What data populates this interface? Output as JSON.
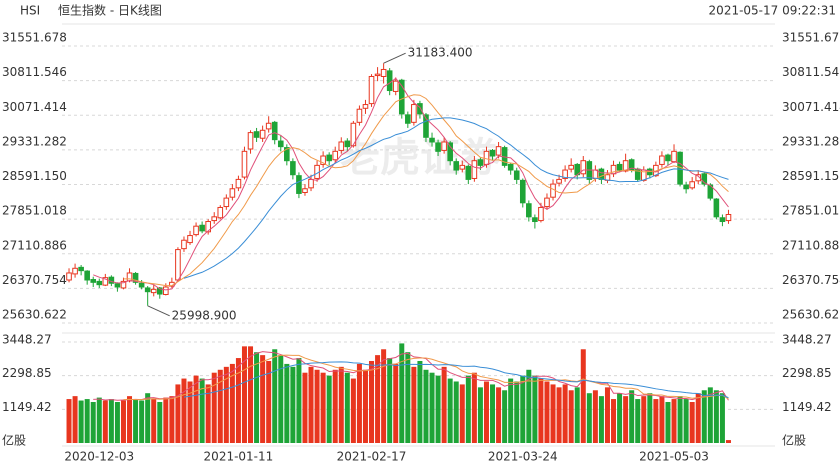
{
  "header": {
    "symbol": "HSI",
    "title": "恒生指数 - 日K线图",
    "timestamp": "2021-05-17 09:22:31",
    "watermark": "老虎证券"
  },
  "chart_data": {
    "type": "candlestick",
    "up_color": "#e8361f",
    "down_color": "#1ea437",
    "categories": [
      null,
      null,
      null,
      null,
      null,
      "2020-12-03",
      null,
      null,
      null,
      null,
      null,
      null,
      null,
      null,
      null,
      null,
      null,
      null,
      null,
      null,
      null,
      null,
      null,
      null,
      null,
      null,
      null,
      null,
      "2021-01-11",
      null,
      null,
      null,
      null,
      null,
      null,
      null,
      null,
      null,
      null,
      null,
      null,
      null,
      null,
      null,
      null,
      null,
      null,
      null,
      null,
      null,
      "2021-02-17",
      null,
      null,
      null,
      null,
      null,
      null,
      null,
      null,
      null,
      null,
      null,
      null,
      null,
      null,
      null,
      null,
      null,
      null,
      null,
      null,
      null,
      null,
      null,
      null,
      "2021-03-24",
      null,
      null,
      null,
      null,
      null,
      null,
      null,
      null,
      null,
      null,
      null,
      null,
      null,
      null,
      null,
      null,
      null,
      null,
      null,
      null,
      null,
      null,
      null,
      null,
      "2021-05-03",
      null,
      null,
      null,
      null,
      null,
      null,
      null,
      null,
      null
    ],
    "ohlc": [
      [
        26550,
        26800,
        26500,
        26700
      ],
      [
        26680,
        26900,
        26600,
        26800
      ],
      [
        26820,
        26870,
        26650,
        26750
      ],
      [
        26740,
        26760,
        26450,
        26550
      ],
      [
        26560,
        26620,
        26400,
        26500
      ],
      [
        26520,
        26580,
        26380,
        26450
      ],
      [
        26440,
        26680,
        26420,
        26600
      ],
      [
        26610,
        26650,
        26420,
        26480
      ],
      [
        26470,
        26500,
        26300,
        26400
      ],
      [
        26380,
        26600,
        26350,
        26520
      ],
      [
        26530,
        26800,
        26500,
        26700
      ],
      [
        26690,
        26720,
        26450,
        26500
      ],
      [
        26480,
        26550,
        26350,
        26400
      ],
      [
        26380,
        26420,
        25998.9,
        26300
      ],
      [
        26280,
        26450,
        26200,
        26350
      ],
      [
        26380,
        26400,
        26150,
        26250
      ],
      [
        26240,
        26480,
        26220,
        26400
      ],
      [
        26420,
        26600,
        26380,
        26500
      ],
      [
        26550,
        27250,
        26520,
        27200
      ],
      [
        27220,
        27480,
        27150,
        27400
      ],
      [
        27350,
        27600,
        27300,
        27500
      ],
      [
        27520,
        27780,
        27480,
        27700
      ],
      [
        27720,
        27800,
        27550,
        27600
      ],
      [
        27580,
        27850,
        27520,
        27800
      ],
      [
        27820,
        28000,
        27750,
        27900
      ],
      [
        27880,
        28150,
        27850,
        28100
      ],
      [
        28120,
        28380,
        28050,
        28300
      ],
      [
        28320,
        28600,
        28250,
        28500
      ],
      [
        28520,
        28780,
        28450,
        28700
      ],
      [
        28750,
        29400,
        28700,
        29300
      ],
      [
        29350,
        29750,
        29250,
        29700
      ],
      [
        29720,
        29800,
        29500,
        29600
      ],
      [
        29580,
        29850,
        29500,
        29750
      ],
      [
        29780,
        30050,
        29700,
        29900
      ],
      [
        29920,
        29950,
        29450,
        29550
      ],
      [
        29520,
        29650,
        29300,
        29400
      ],
      [
        29380,
        29450,
        29000,
        29100
      ],
      [
        29080,
        29150,
        28700,
        28800
      ],
      [
        28780,
        28850,
        28300,
        28400
      ],
      [
        28420,
        28600,
        28350,
        28500
      ],
      [
        28520,
        28800,
        28450,
        28700
      ],
      [
        28720,
        29100,
        28650,
        29000
      ],
      [
        29020,
        29300,
        28950,
        29200
      ],
      [
        29220,
        29280,
        29000,
        29100
      ],
      [
        29120,
        29400,
        29050,
        29300
      ],
      [
        29320,
        29600,
        29250,
        29500
      ],
      [
        29520,
        29580,
        29300,
        29400
      ],
      [
        29420,
        29950,
        29380,
        29900
      ],
      [
        29920,
        30280,
        29850,
        30200
      ],
      [
        30220,
        30400,
        30100,
        30300
      ],
      [
        30320,
        30950,
        30250,
        30900
      ],
      [
        30920,
        31100,
        30800,
        30950
      ],
      [
        30900,
        31183.4,
        30750,
        31050
      ],
      [
        31020,
        31080,
        30500,
        30600
      ],
      [
        30580,
        30880,
        30500,
        30800
      ],
      [
        30820,
        30850,
        30000,
        30100
      ],
      [
        30080,
        30150,
        29800,
        29900
      ],
      [
        29920,
        30400,
        29850,
        30300
      ],
      [
        30320,
        30380,
        30000,
        30100
      ],
      [
        30080,
        30120,
        29500,
        29600
      ],
      [
        29580,
        29700,
        29400,
        29500
      ],
      [
        29480,
        29550,
        29200,
        29300
      ],
      [
        29320,
        29600,
        29250,
        29500
      ],
      [
        29480,
        29520,
        29000,
        29100
      ],
      [
        29080,
        29150,
        28800,
        28900
      ],
      [
        28920,
        29100,
        28850,
        29000
      ],
      [
        28980,
        29020,
        28600,
        28700
      ],
      [
        28720,
        29200,
        28650,
        29100
      ],
      [
        29120,
        29180,
        28900,
        29000
      ],
      [
        29020,
        29400,
        28950,
        29300
      ],
      [
        29320,
        29350,
        29100,
        29200
      ],
      [
        29220,
        29500,
        29150,
        29400
      ],
      [
        29380,
        29420,
        28950,
        29000
      ],
      [
        29020,
        29050,
        28800,
        28900
      ],
      [
        28880,
        28950,
        28600,
        28700
      ],
      [
        28680,
        28720,
        28100,
        28200
      ],
      [
        28180,
        28250,
        27800,
        27900
      ],
      [
        27880,
        27950,
        27650,
        27800
      ],
      [
        27820,
        28200,
        27780,
        28100
      ],
      [
        28120,
        28400,
        28050,
        28300
      ],
      [
        28320,
        28700,
        28250,
        28600
      ],
      [
        28620,
        28800,
        28550,
        28700
      ],
      [
        28720,
        29000,
        28650,
        28900
      ],
      [
        28920,
        29150,
        28850,
        29000
      ],
      [
        29020,
        29050,
        28700,
        28800
      ],
      [
        28820,
        29200,
        28750,
        29100
      ],
      [
        29080,
        29120,
        28600,
        28700
      ],
      [
        28720,
        29000,
        28650,
        28900
      ],
      [
        28920,
        28950,
        28600,
        28700
      ],
      [
        28680,
        28900,
        28620,
        28800
      ],
      [
        28820,
        29100,
        28750,
        29000
      ],
      [
        29020,
        29080,
        28850,
        28900
      ],
      [
        28880,
        29250,
        28850,
        29100
      ],
      [
        29120,
        29150,
        28850,
        28900
      ],
      [
        28920,
        28950,
        28650,
        28700
      ],
      [
        28680,
        28980,
        28650,
        28900
      ],
      [
        28920,
        28950,
        28720,
        28800
      ],
      [
        28780,
        29080,
        28750,
        29000
      ],
      [
        29020,
        29300,
        28950,
        29200
      ],
      [
        29220,
        29250,
        29000,
        29100
      ],
      [
        29080,
        29450,
        29050,
        29300
      ],
      [
        29280,
        29300,
        28550,
        28600
      ],
      [
        28580,
        28650,
        28400,
        28500
      ],
      [
        28520,
        28750,
        28480,
        28650
      ],
      [
        28670,
        28900,
        28600,
        28800
      ],
      [
        28820,
        28850,
        28550,
        28600
      ],
      [
        28580,
        28620,
        28250,
        28300
      ],
      [
        28280,
        28300,
        27850,
        27900
      ],
      [
        27880,
        27950,
        27700,
        27800
      ],
      [
        27820,
        28050,
        27750,
        27950
      ]
    ],
    "volume": [
      1500,
      1600,
      1450,
      1500,
      1400,
      1550,
      1450,
      1500,
      1400,
      1450,
      1600,
      1500,
      1450,
      1700,
      1500,
      1400,
      1550,
      1600,
      2000,
      2200,
      2100,
      2300,
      2200,
      2000,
      2400,
      2500,
      2600,
      2700,
      2900,
      3300,
      3300,
      3100,
      3000,
      2800,
      3200,
      3000,
      2700,
      2600,
      2900,
      2400,
      2600,
      2500,
      2400,
      2300,
      2500,
      2600,
      2400,
      2200,
      2700,
      2500,
      2800,
      3000,
      3200,
      2900,
      2700,
      3400,
      3100,
      2600,
      2800,
      2500,
      2400,
      2300,
      2600,
      2200,
      2100,
      2000,
      2300,
      2400,
      1900,
      2100,
      2000,
      1900,
      1800,
      2200,
      2100,
      2300,
      2500,
      2300,
      2200,
      2100,
      2000,
      1900,
      2000,
      1800,
      1900,
      3200,
      1700,
      1800,
      1600,
      1900,
      1500,
      1700,
      1600,
      1800,
      1500,
      1600,
      1700,
      1500,
      1600,
      1400,
      1500,
      1600,
      1500,
      1400,
      1700,
      1800,
      1900,
      1800,
      1700,
      100
    ],
    "ylim": [
      25630.622,
      31551.678
    ],
    "yticks": [
      25630.622,
      26370.754,
      27110.886,
      27851.018,
      {
        "value": 28591.15,
        "label": "28591.150"
      },
      29331.282,
      30071.414,
      30811.546,
      31551.678
    ],
    "y2lim": [
      0,
      3448.27
    ],
    "y2ticks": [
      {
        "value": 0,
        "label": "亿股"
      },
      1149.42,
      2298.85,
      3448.27
    ],
    "grid": true,
    "annotations": [
      {
        "text": "31183.400",
        "index": 52,
        "value": 31183.4
      },
      {
        "text": "25998.900",
        "index": 13,
        "value": 25998.9
      }
    ]
  }
}
